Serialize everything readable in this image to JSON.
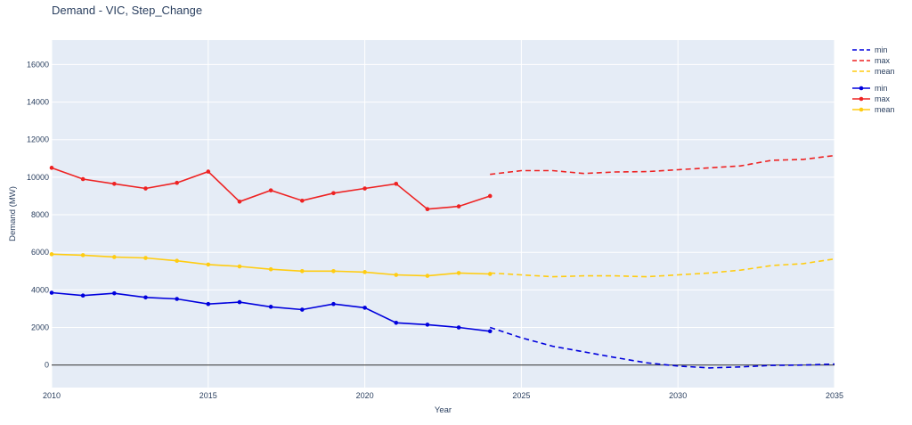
{
  "chart_data": {
    "type": "line",
    "title": "Demand - VIC, Step_Change",
    "xlabel": "Year",
    "ylabel": "Demand (MW)",
    "xlim": [
      2010,
      2035
    ],
    "ylim": [
      -1200,
      17300
    ],
    "x_ticks": [
      2010,
      2015,
      2020,
      2025,
      2030,
      2035
    ],
    "y_ticks": [
      0,
      2000,
      4000,
      6000,
      8000,
      10000,
      12000,
      14000,
      16000
    ],
    "grid": true,
    "legend_position": "right",
    "zero_line": true,
    "series": [
      {
        "name": "min",
        "group": "forecast",
        "dash": true,
        "markers": false,
        "color": "#0000dd",
        "x": [
          2024,
          2025,
          2026,
          2027,
          2028,
          2029,
          2030,
          2031,
          2032,
          2033,
          2034,
          2035
        ],
        "y": [
          2000,
          1450,
          1000,
          700,
          400,
          120,
          -50,
          -150,
          -100,
          -20,
          0,
          50
        ]
      },
      {
        "name": "max",
        "group": "forecast",
        "dash": true,
        "markers": false,
        "color": "#ee2222",
        "x": [
          2024,
          2025,
          2026,
          2027,
          2028,
          2029,
          2030,
          2031,
          2032,
          2033,
          2034,
          2035
        ],
        "y": [
          10150,
          10350,
          10350,
          10200,
          10280,
          10300,
          10400,
          10500,
          10600,
          10900,
          10950,
          11150
        ]
      },
      {
        "name": "mean",
        "group": "forecast",
        "dash": true,
        "markers": false,
        "color": "#ffcc11",
        "x": [
          2024,
          2025,
          2026,
          2027,
          2028,
          2029,
          2030,
          2031,
          2032,
          2033,
          2034,
          2035
        ],
        "y": [
          4900,
          4800,
          4700,
          4750,
          4750,
          4700,
          4800,
          4900,
          5050,
          5300,
          5400,
          5650
        ]
      },
      {
        "name": "min",
        "group": "actual",
        "dash": false,
        "markers": true,
        "color": "#0000dd",
        "x": [
          2010,
          2011,
          2012,
          2013,
          2014,
          2015,
          2016,
          2017,
          2018,
          2019,
          2020,
          2021,
          2022,
          2023,
          2024
        ],
        "y": [
          3850,
          3700,
          3820,
          3600,
          3520,
          3250,
          3350,
          3100,
          2950,
          3250,
          3050,
          2250,
          2150,
          2000,
          1800
        ]
      },
      {
        "name": "max",
        "group": "actual",
        "dash": false,
        "markers": true,
        "color": "#ee2222",
        "x": [
          2010,
          2011,
          2012,
          2013,
          2014,
          2015,
          2016,
          2017,
          2018,
          2019,
          2020,
          2021,
          2022,
          2023,
          2024
        ],
        "y": [
          10500,
          9900,
          9650,
          9400,
          9700,
          10300,
          8700,
          9300,
          8750,
          9150,
          9400,
          9650,
          8300,
          8450,
          9000
        ]
      },
      {
        "name": "mean",
        "group": "actual",
        "dash": false,
        "markers": true,
        "color": "#ffcc11",
        "x": [
          2010,
          2011,
          2012,
          2013,
          2014,
          2015,
          2016,
          2017,
          2018,
          2019,
          2020,
          2021,
          2022,
          2023,
          2024
        ],
        "y": [
          5900,
          5850,
          5750,
          5700,
          5550,
          5350,
          5250,
          5100,
          5000,
          5000,
          4950,
          4800,
          4750,
          4900,
          4850
        ]
      }
    ]
  }
}
